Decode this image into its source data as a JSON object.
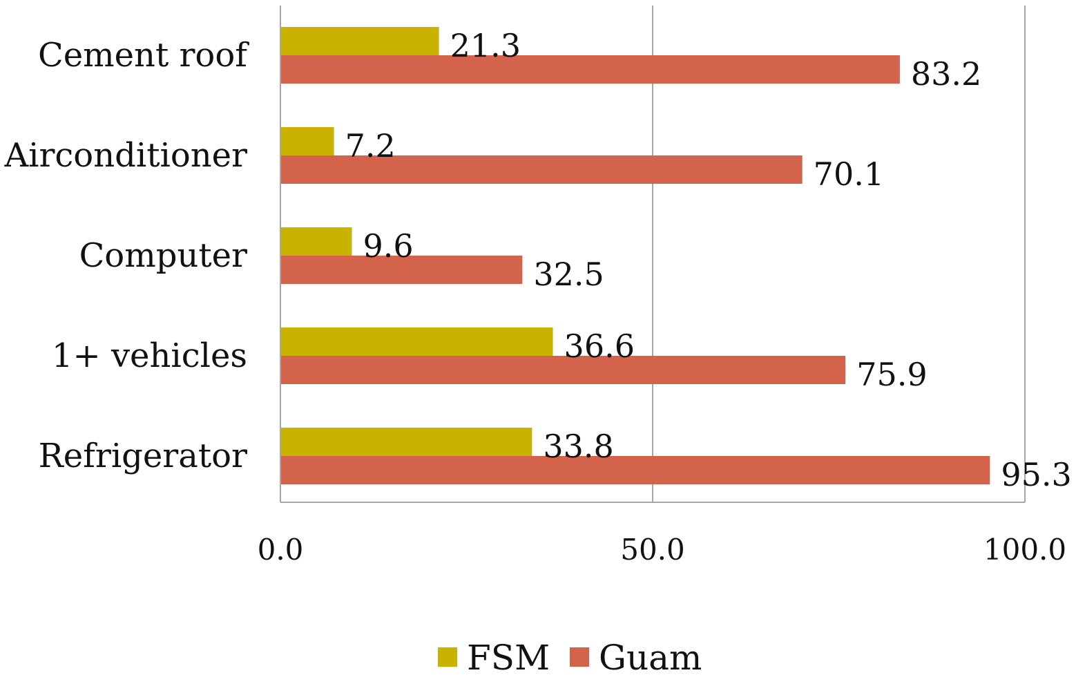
{
  "chart_data": {
    "type": "bar",
    "orientation": "horizontal",
    "title": "",
    "xlabel": "",
    "ylabel": "",
    "categories": [
      "Cement roof",
      "Airconditioner",
      "Computer",
      "1+ vehicles",
      "Refrigerator"
    ],
    "series": [
      {
        "name": "FSM",
        "color": "#C9B200",
        "values": [
          21.3,
          7.2,
          9.6,
          36.6,
          33.8
        ],
        "labels": [
          "21.3",
          "7.2",
          "9.6",
          "36.6",
          "33.8"
        ]
      },
      {
        "name": "Guam",
        "color": "#D4634C",
        "values": [
          83.2,
          70.1,
          32.5,
          75.9,
          95.3
        ],
        "labels": [
          "83.2",
          "70.1",
          "32.5",
          "75.9",
          "95.3"
        ]
      }
    ],
    "xlim": [
      0,
      100
    ],
    "xticks": [
      0,
      50,
      100
    ],
    "xtick_labels": [
      "0.0",
      "50.0",
      "100.0"
    ],
    "grid": "vertical",
    "legend_position": "bottom",
    "axis_color": "#A6A6A6"
  }
}
